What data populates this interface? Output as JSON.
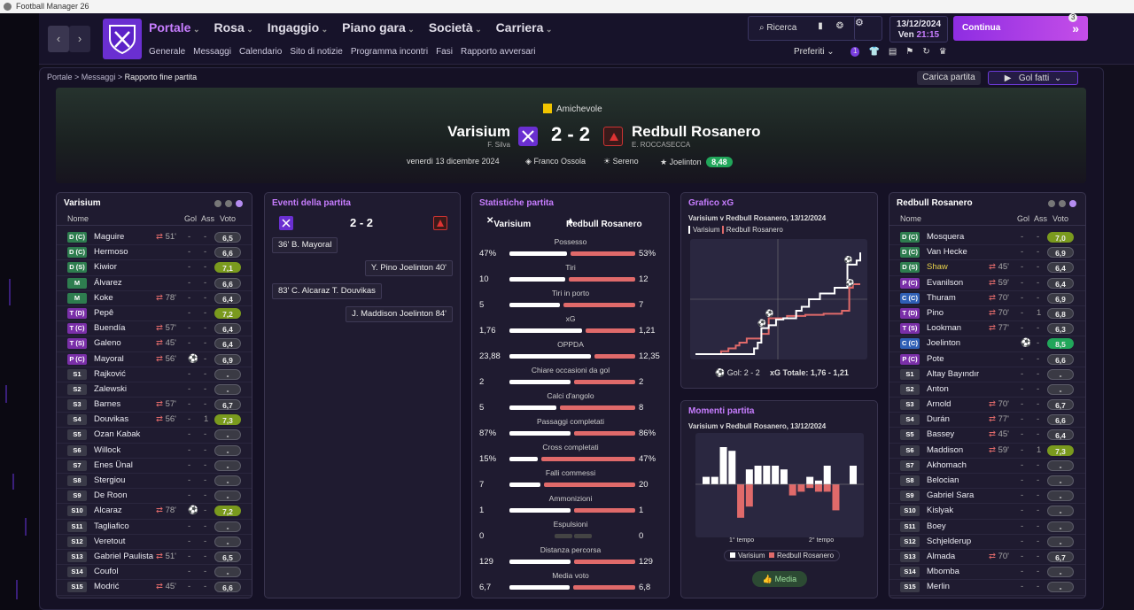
{
  "window": {
    "title": "Football Manager 26"
  },
  "nav": {
    "main": [
      {
        "label": "Portale",
        "active": true
      },
      {
        "label": "Rosa"
      },
      {
        "label": "Ingaggio"
      },
      {
        "label": "Piano gara"
      },
      {
        "label": "Società"
      },
      {
        "label": "Carriera"
      }
    ],
    "sub": [
      "Generale",
      "Messaggi",
      "Calendario",
      "Sito di notizie",
      "Programma incontri",
      "Fasi",
      "Rapporto avversari"
    ],
    "search": "Ricerca",
    "date": "13/12/2024",
    "day": "Ven",
    "time": "21:15",
    "continue": "Continua",
    "badge": "3",
    "preferiti": "Preferiti",
    "notif": "1"
  },
  "breadcrumb": [
    "Portale",
    "Messaggi",
    "Rapporto fine partita"
  ],
  "buttons": {
    "carica": "Carica partita",
    "golfatti": "Gol fatti"
  },
  "match": {
    "competition": "Amichevole",
    "home": "Varisium",
    "home_coach": "F. Silva",
    "away": "Redbull Rosanero",
    "away_coach": "E. ROCCASECCA",
    "score": "2 - 2",
    "date": "venerdì 13 dicembre 2024",
    "referee": "Franco Ossola",
    "weather": "Sereno",
    "potm": "Joelinton",
    "potm_rating": "8,48"
  },
  "colors": {
    "accent": "#c77dff",
    "home": "#7a3fe0",
    "away": "#e06a6a"
  },
  "home_panel": {
    "title": "Varisium",
    "headers": {
      "name": "Nome",
      "gol": "Gol",
      "ass": "Ass",
      "voto": "Voto"
    },
    "rows": [
      {
        "pos": "D (C)",
        "c": "#2e7d4f",
        "name": "Maguire",
        "sub": "51'",
        "gol": "-",
        "ass": "-",
        "voto": "6,5"
      },
      {
        "pos": "D (C)",
        "c": "#2e7d4f",
        "name": "Hermoso",
        "sub": "",
        "gol": "-",
        "ass": "-",
        "voto": "6,6"
      },
      {
        "pos": "D (S)",
        "c": "#2e7d4f",
        "name": "Kiwior",
        "sub": "",
        "gol": "-",
        "ass": "-",
        "voto": "7,1"
      },
      {
        "pos": "M",
        "c": "#2e7d4f",
        "name": "Álvarez",
        "sub": "",
        "gol": "-",
        "ass": "-",
        "voto": "6,6"
      },
      {
        "pos": "M",
        "c": "#2e7d4f",
        "name": "Koke",
        "sub": "78'",
        "gol": "-",
        "ass": "-",
        "voto": "6,4"
      },
      {
        "pos": "T (D)",
        "c": "#7a2fa8",
        "name": "Pepê",
        "sub": "",
        "gol": "-",
        "ass": "-",
        "voto": "7,2"
      },
      {
        "pos": "T (C)",
        "c": "#7a2fa8",
        "name": "Buendía",
        "sub": "57'",
        "gol": "-",
        "ass": "-",
        "voto": "6,4"
      },
      {
        "pos": "T (S)",
        "c": "#7a2fa8",
        "name": "Galeno",
        "sub": "45'",
        "gol": "-",
        "ass": "-",
        "voto": "6,4"
      },
      {
        "pos": "P (C)",
        "c": "#7a2fa8",
        "name": "Mayoral",
        "sub": "56'",
        "gol": "⚽",
        "ass": "-",
        "voto": "6,9"
      },
      {
        "pos": "S1",
        "c": "#3a3a48",
        "name": "Rajković",
        "sub": "",
        "gol": "-",
        "ass": "-",
        "voto": "-"
      },
      {
        "pos": "S2",
        "c": "#3a3a48",
        "name": "Zalewski",
        "sub": "",
        "gol": "-",
        "ass": "-",
        "voto": "-"
      },
      {
        "pos": "S3",
        "c": "#3a3a48",
        "name": "Barnes",
        "sub": "57'",
        "gol": "-",
        "ass": "-",
        "voto": "6,7"
      },
      {
        "pos": "S4",
        "c": "#3a3a48",
        "name": "Douvikas",
        "sub": "56'",
        "gol": "-",
        "ass": "1",
        "voto": "7,3"
      },
      {
        "pos": "S5",
        "c": "#3a3a48",
        "name": "Ozan Kabak",
        "sub": "",
        "gol": "-",
        "ass": "-",
        "voto": "-"
      },
      {
        "pos": "S6",
        "c": "#3a3a48",
        "name": "Willock",
        "sub": "",
        "gol": "-",
        "ass": "-",
        "voto": "-"
      },
      {
        "pos": "S7",
        "c": "#3a3a48",
        "name": "Enes Ünal",
        "sub": "",
        "gol": "-",
        "ass": "-",
        "voto": "-"
      },
      {
        "pos": "S8",
        "c": "#3a3a48",
        "name": "Stergiou",
        "sub": "",
        "gol": "-",
        "ass": "-",
        "voto": "-"
      },
      {
        "pos": "S9",
        "c": "#3a3a48",
        "name": "De Roon",
        "sub": "",
        "gol": "-",
        "ass": "-",
        "voto": "-"
      },
      {
        "pos": "S10",
        "c": "#3a3a48",
        "name": "Alcaraz",
        "sub": "78'",
        "gol": "⚽",
        "ass": "-",
        "voto": "7,2"
      },
      {
        "pos": "S11",
        "c": "#3a3a48",
        "name": "Tagliafico",
        "sub": "",
        "gol": "-",
        "ass": "-",
        "voto": "-"
      },
      {
        "pos": "S12",
        "c": "#3a3a48",
        "name": "Veretout",
        "sub": "",
        "gol": "-",
        "ass": "-",
        "voto": "-"
      },
      {
        "pos": "S13",
        "c": "#3a3a48",
        "name": "Gabriel Paulista",
        "sub": "51'",
        "gol": "-",
        "ass": "-",
        "voto": "6,5"
      },
      {
        "pos": "S14",
        "c": "#3a3a48",
        "name": "Coufol",
        "sub": "",
        "gol": "-",
        "ass": "-",
        "voto": "-"
      },
      {
        "pos": "S15",
        "c": "#3a3a48",
        "name": "Modrić",
        "sub": "45'",
        "gol": "-",
        "ass": "-",
        "voto": "6,6"
      }
    ]
  },
  "away_panel": {
    "title": "Redbull Rosanero",
    "headers": {
      "name": "Nome",
      "gol": "Gol",
      "ass": "Ass",
      "voto": "Voto"
    },
    "rows": [
      {
        "pos": "D (C)",
        "c": "#2e7d4f",
        "name": "Mosquera",
        "sub": "",
        "gol": "-",
        "ass": "-",
        "voto": "7,0"
      },
      {
        "pos": "D (C)",
        "c": "#2e7d4f",
        "name": "Van Hecke",
        "sub": "",
        "gol": "-",
        "ass": "-",
        "voto": "6,9"
      },
      {
        "pos": "D (S)",
        "c": "#2e7d4f",
        "name": "Shaw",
        "sub": "45'",
        "gol": "-",
        "ass": "-",
        "voto": "6,4",
        "hl": true
      },
      {
        "pos": "P (C)",
        "c": "#7a2fa8",
        "name": "Evanilson",
        "sub": "59'",
        "gol": "-",
        "ass": "-",
        "voto": "6,4"
      },
      {
        "pos": "C (C)",
        "c": "#2f5fb5",
        "name": "Thuram",
        "sub": "70'",
        "gol": "-",
        "ass": "-",
        "voto": "6,9"
      },
      {
        "pos": "T (D)",
        "c": "#7a2fa8",
        "name": "Pino",
        "sub": "70'",
        "gol": "-",
        "ass": "1",
        "voto": "6,8"
      },
      {
        "pos": "T (S)",
        "c": "#7a2fa8",
        "name": "Lookman",
        "sub": "77'",
        "gol": "-",
        "ass": "-",
        "voto": "6,3"
      },
      {
        "pos": "C (C)",
        "c": "#2f5fb5",
        "name": "Joelinton",
        "sub": "",
        "gol": "⚽",
        "ass": "-",
        "voto": "8,5"
      },
      {
        "pos": "P (C)",
        "c": "#7a2fa8",
        "name": "Pote",
        "sub": "",
        "gol": "-",
        "ass": "-",
        "voto": "6,6"
      },
      {
        "pos": "S1",
        "c": "#3a3a48",
        "name": "Altay Bayındır",
        "sub": "",
        "gol": "-",
        "ass": "-",
        "voto": "-"
      },
      {
        "pos": "S2",
        "c": "#3a3a48",
        "name": "Anton",
        "sub": "",
        "gol": "-",
        "ass": "-",
        "voto": "-"
      },
      {
        "pos": "S3",
        "c": "#3a3a48",
        "name": "Arnold",
        "sub": "70'",
        "gol": "-",
        "ass": "-",
        "voto": "6,7"
      },
      {
        "pos": "S4",
        "c": "#3a3a48",
        "name": "Durán",
        "sub": "77'",
        "gol": "-",
        "ass": "-",
        "voto": "6,6"
      },
      {
        "pos": "S5",
        "c": "#3a3a48",
        "name": "Bassey",
        "sub": "45'",
        "gol": "-",
        "ass": "-",
        "voto": "6,4"
      },
      {
        "pos": "S6",
        "c": "#3a3a48",
        "name": "Maddison",
        "sub": "59'",
        "gol": "-",
        "ass": "1",
        "voto": "7,3"
      },
      {
        "pos": "S7",
        "c": "#3a3a48",
        "name": "Akhomach",
        "sub": "",
        "gol": "-",
        "ass": "-",
        "voto": "-"
      },
      {
        "pos": "S8",
        "c": "#3a3a48",
        "name": "Belocian",
        "sub": "",
        "gol": "-",
        "ass": "-",
        "voto": "-"
      },
      {
        "pos": "S9",
        "c": "#3a3a48",
        "name": "Gabriel Sara",
        "sub": "",
        "gol": "-",
        "ass": "-",
        "voto": "-"
      },
      {
        "pos": "S10",
        "c": "#3a3a48",
        "name": "Kislyak",
        "sub": "",
        "gol": "-",
        "ass": "-",
        "voto": "-"
      },
      {
        "pos": "S11",
        "c": "#3a3a48",
        "name": "Boey",
        "sub": "",
        "gol": "-",
        "ass": "-",
        "voto": "-"
      },
      {
        "pos": "S12",
        "c": "#3a3a48",
        "name": "Schjelderup",
        "sub": "",
        "gol": "-",
        "ass": "-",
        "voto": "-"
      },
      {
        "pos": "S13",
        "c": "#3a3a48",
        "name": "Almada",
        "sub": "70'",
        "gol": "-",
        "ass": "-",
        "voto": "6,7"
      },
      {
        "pos": "S14",
        "c": "#3a3a48",
        "name": "Mbomba",
        "sub": "",
        "gol": "-",
        "ass": "-",
        "voto": "-"
      },
      {
        "pos": "S15",
        "c": "#3a3a48",
        "name": "Merlin",
        "sub": "",
        "gol": "-",
        "ass": "-",
        "voto": "-"
      }
    ]
  },
  "events": {
    "title": "Eventi della partita",
    "score": "2 - 2",
    "items": [
      {
        "side": "home",
        "text": "36' B. Mayoral"
      },
      {
        "side": "away",
        "text": "Y. Pino  Joelinton 40'"
      },
      {
        "side": "home",
        "text": "83' C. Alcaraz  T. Douvikas"
      },
      {
        "side": "away",
        "text": "J. Maddison  Joelinton 84'"
      }
    ]
  },
  "stats": {
    "title": "Statistiche partita",
    "home": "Varisium",
    "away": "Redbull Rosanero",
    "items": [
      {
        "label": "Possesso",
        "h": "47%",
        "a": "53%",
        "hv": 47,
        "av": 53
      },
      {
        "label": "Tiri",
        "h": "10",
        "a": "12",
        "hv": 10,
        "av": 12
      },
      {
        "label": "Tiri in porto",
        "h": "5",
        "a": "7",
        "hv": 5,
        "av": 7
      },
      {
        "label": "xG",
        "h": "1,76",
        "a": "1,21",
        "hv": 1.76,
        "av": 1.21
      },
      {
        "label": "OPPDA",
        "h": "23,88",
        "a": "12,35",
        "hv": 23.88,
        "av": 12.35
      },
      {
        "label": "Chiare occasioni da gol",
        "h": "2",
        "a": "2",
        "hv": 2,
        "av": 2
      },
      {
        "label": "Calci d'angolo",
        "h": "5",
        "a": "8",
        "hv": 5,
        "av": 8
      },
      {
        "label": "Passaggi completati",
        "h": "87%",
        "a": "86%",
        "hv": 87,
        "av": 86
      },
      {
        "label": "Cross completati",
        "h": "15%",
        "a": "47%",
        "hv": 15,
        "av": 47
      },
      {
        "label": "Falli commessi",
        "h": "7",
        "a": "20",
        "hv": 7,
        "av": 20
      },
      {
        "label": "Ammonizioni",
        "h": "1",
        "a": "1",
        "hv": 1,
        "av": 1
      },
      {
        "label": "Espulsioni",
        "h": "0",
        "a": "0",
        "hv": 0,
        "av": 0
      },
      {
        "label": "Distanza percorsa",
        "h": "129",
        "a": "129",
        "hv": 129,
        "av": 129
      },
      {
        "label": "Media voto",
        "h": "6,7",
        "a": "6,8",
        "hv": 6.7,
        "av": 6.8
      }
    ]
  },
  "xg": {
    "title": "Grafico xG",
    "subtitle": "Varisium v Redbull Rosanero, 13/12/2024",
    "legend_home": "Varisium",
    "legend_away": "Redbull Rosanero",
    "gol": "Gol: 2 - 2",
    "totale": "xG Totale: 1,76 - 1,21"
  },
  "moments": {
    "title": "Momenti partita",
    "subtitle": "Varisium v Redbull Rosanero, 13/12/2024",
    "half1": "1° tempo",
    "half2": "2° tempo",
    "legend_home": "Varisium",
    "legend_away": "Redbull Rosanero",
    "button": "Media"
  },
  "chart_data": [
    {
      "type": "line",
      "series": [
        {
          "name": "Varisium",
          "x": [
            0,
            32,
            34,
            36,
            40,
            44,
            48,
            55,
            58,
            62,
            68,
            76,
            83,
            88,
            90
          ],
          "y": [
            0,
            0.1,
            0.2,
            0.45,
            0.5,
            0.6,
            0.62,
            0.75,
            0.82,
            0.95,
            1.05,
            1.15,
            1.55,
            1.62,
            1.76
          ]
        },
        {
          "name": "Redbull Rosanero",
          "x": [
            0,
            14,
            18,
            22,
            24,
            28,
            36,
            40,
            50,
            60,
            70,
            80,
            84,
            86,
            90
          ],
          "y": [
            0,
            0.05,
            0.1,
            0.15,
            0.2,
            0.27,
            0.35,
            0.62,
            0.66,
            0.68,
            0.7,
            0.75,
            1.15,
            1.21,
            1.21
          ]
        }
      ],
      "xlim": [
        0,
        90
      ]
    },
    {
      "type": "bar",
      "categories": [
        "1",
        "2",
        "3",
        "4",
        "5",
        "6",
        "7",
        "8",
        "9",
        "10",
        "11",
        "12",
        "13",
        "14",
        "15",
        "16",
        "17",
        "18"
      ],
      "series": [
        {
          "name": "Varisium",
          "values": [
            0.1,
            0.1,
            0.5,
            0.45,
            0,
            0.2,
            0.25,
            0.25,
            0.25,
            0.2,
            0,
            0,
            0.1,
            0.05,
            0.25,
            0,
            0,
            0.25
          ]
        },
        {
          "name": "Redbull Rosanero",
          "values": [
            0,
            0,
            0,
            0,
            0.45,
            0.3,
            0,
            0,
            0,
            0,
            0.15,
            0.1,
            0.05,
            0.1,
            0.1,
            0.35,
            0,
            0
          ]
        }
      ]
    }
  ]
}
